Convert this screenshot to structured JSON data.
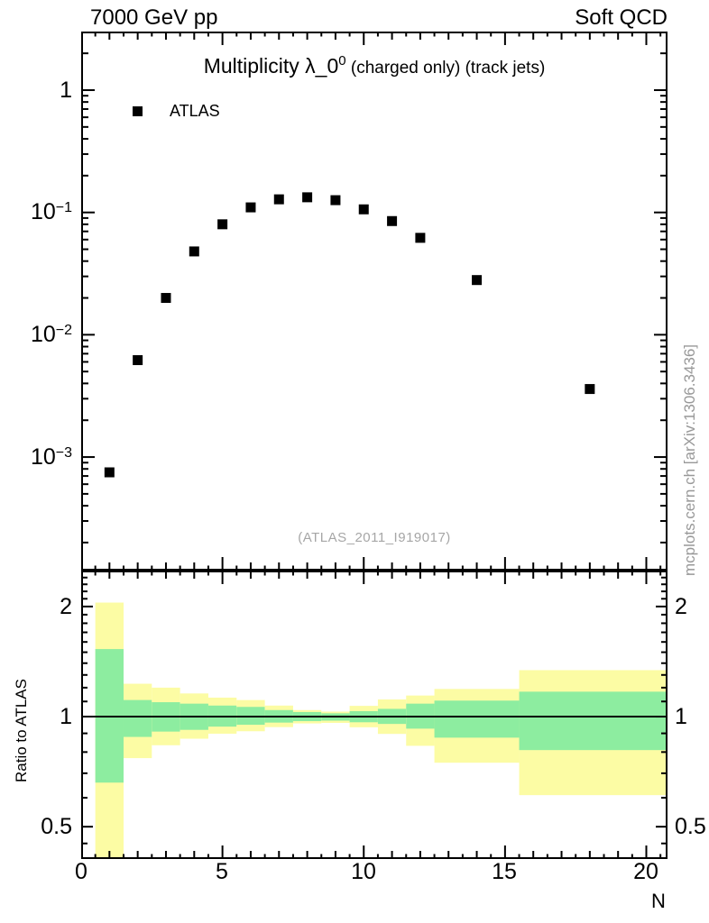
{
  "header": {
    "left": "7000 GeV pp",
    "right": "Soft QCD"
  },
  "main_panel": {
    "title": {
      "main": "Multiplicity λ_0",
      "sup": "0",
      "suffix": " (charged only) (track jets)"
    },
    "legend": [
      {
        "label": "ATLAS",
        "marker": "filled-square",
        "marker_color": "#000000"
      }
    ],
    "y_ticks": [
      {
        "base": "1",
        "exp": ""
      },
      {
        "base": "10",
        "exp": "−1"
      },
      {
        "base": "10",
        "exp": "−2"
      },
      {
        "base": "10",
        "exp": "−3"
      }
    ],
    "watermark": "(ATLAS_2011_I919017)"
  },
  "ratio_panel": {
    "ylabel": "Ratio to ATLAS",
    "y_tick_labels": [
      "2",
      "1",
      "0.5"
    ]
  },
  "x_axis": {
    "tick_labels": [
      "0",
      "5",
      "10",
      "15",
      "20"
    ],
    "label": "N"
  },
  "side_note": "mcplots.cern.ch [arXiv:1306.3436]",
  "colors": {
    "yellow_band": "#fcfca4",
    "green_band": "#8deda0",
    "marker": "#000000",
    "frame": "#000000",
    "gray_text": "#a0a0a0"
  },
  "chart_data": [
    {
      "type": "scatter",
      "panel": "main",
      "title": "Multiplicity λ_0^0 (charged only) (track jets)",
      "xlabel": "N",
      "ylabel": "",
      "xlim": [
        0,
        20.75
      ],
      "ylog": true,
      "ylim": [
        0.000118,
        3.013
      ],
      "x_major_ticks": [
        0,
        5,
        10,
        15,
        20
      ],
      "y_labeled_ticks": [
        1,
        0.1,
        0.01,
        0.001
      ],
      "grid": false,
      "legend_position": "top-left",
      "series": [
        {
          "name": "ATLAS",
          "marker": "filled-square",
          "color": "#000000",
          "x": [
            1,
            2,
            3,
            4,
            5,
            6,
            7,
            8,
            9,
            10,
            11,
            12,
            14,
            18
          ],
          "y": [
            0.00075,
            0.0062,
            0.02,
            0.048,
            0.08,
            0.11,
            0.128,
            0.133,
            0.126,
            0.106,
            0.085,
            0.062,
            0.028,
            0.0036
          ]
        }
      ]
    },
    {
      "type": "ratio-band",
      "panel": "ratio",
      "ylabel": "Ratio to ATLAS",
      "xlim": [
        0,
        20.75
      ],
      "ylog": true,
      "ylim": [
        0.408,
        2.508
      ],
      "reference_line": 1,
      "y_labeled_ticks": [
        0.5,
        1,
        2
      ],
      "bins": [
        {
          "xlo": 0.5,
          "xhi": 1.5,
          "yellow": [
            0.41,
            2.05
          ],
          "green": [
            0.66,
            1.53
          ]
        },
        {
          "xlo": 1.5,
          "xhi": 2.5,
          "yellow": [
            0.77,
            1.23
          ],
          "green": [
            0.88,
            1.11
          ]
        },
        {
          "xlo": 2.5,
          "xhi": 3.5,
          "yellow": [
            0.835,
            1.2
          ],
          "green": [
            0.91,
            1.095
          ]
        },
        {
          "xlo": 3.5,
          "xhi": 4.5,
          "yellow": [
            0.87,
            1.157
          ],
          "green": [
            0.92,
            1.085
          ]
        },
        {
          "xlo": 4.5,
          "xhi": 5.5,
          "yellow": [
            0.898,
            1.127
          ],
          "green": [
            0.939,
            1.072
          ]
        },
        {
          "xlo": 5.5,
          "xhi": 6.5,
          "yellow": [
            0.912,
            1.11
          ],
          "green": [
            0.95,
            1.063
          ]
        },
        {
          "xlo": 6.5,
          "xhi": 7.5,
          "yellow": [
            0.936,
            1.072
          ],
          "green": [
            0.963,
            1.042
          ]
        },
        {
          "xlo": 7.5,
          "xhi": 8.5,
          "yellow": [
            0.958,
            1.042
          ],
          "green": [
            0.972,
            1.029
          ]
        },
        {
          "xlo": 8.5,
          "xhi": 9.5,
          "yellow": [
            0.961,
            1.032
          ],
          "green": [
            0.975,
            1.021
          ]
        },
        {
          "xlo": 9.5,
          "xhi": 10.5,
          "yellow": [
            0.935,
            1.07
          ],
          "green": [
            0.965,
            1.035
          ]
        },
        {
          "xlo": 10.5,
          "xhi": 11.5,
          "yellow": [
            0.897,
            1.114
          ],
          "green": [
            0.955,
            1.05
          ]
        },
        {
          "xlo": 11.5,
          "xhi": 12.5,
          "yellow": [
            0.832,
            1.142
          ],
          "green": [
            0.927,
            1.085
          ]
        },
        {
          "xlo": 12.5,
          "xhi": 15.5,
          "yellow": [
            0.748,
            1.19
          ],
          "green": [
            0.876,
            1.106
          ]
        },
        {
          "xlo": 15.5,
          "xhi": 20.75,
          "yellow": [
            0.61,
            1.34
          ],
          "green": [
            0.81,
            1.17
          ]
        }
      ]
    }
  ]
}
